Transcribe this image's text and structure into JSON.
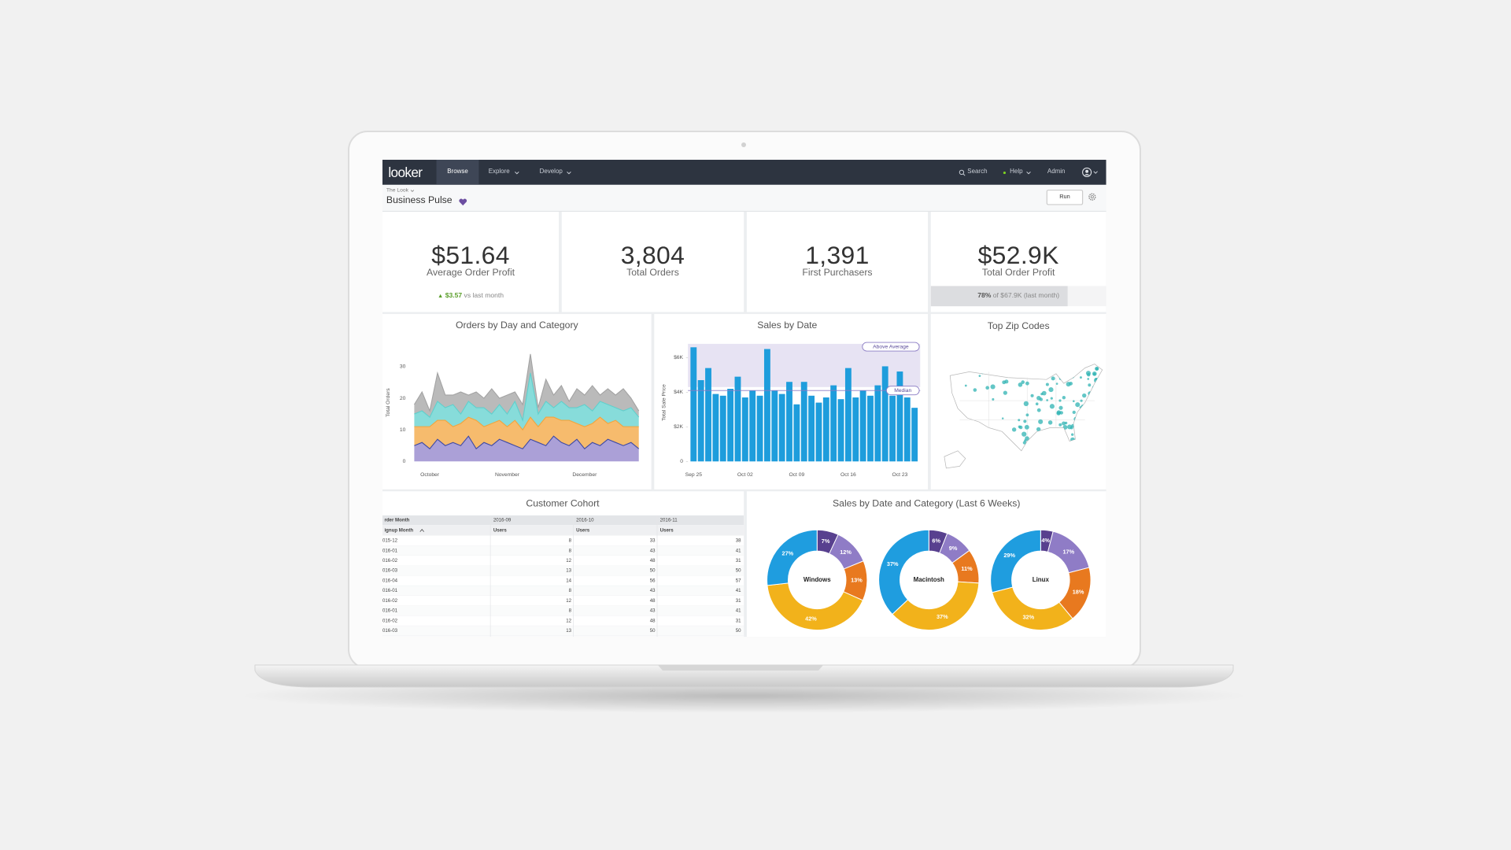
{
  "nav": {
    "logo": "looker",
    "tabs": [
      "Browse",
      "Explore",
      "Develop"
    ],
    "search": "Search",
    "help": "Help",
    "admin": "Admin"
  },
  "header": {
    "breadcrumb": "The Look",
    "title": "Business Pulse",
    "run": "Run"
  },
  "tiles": [
    {
      "value": "$51.64",
      "label": "Average Order Profit",
      "change": "$3.57",
      "change_note": "vs last month"
    },
    {
      "value": "3,804",
      "label": "Total Orders"
    },
    {
      "value": "1,391",
      "label": "First Purchasers"
    },
    {
      "value": "$52.9K",
      "label": "Total Order Profit",
      "progress": {
        "value": 78,
        "label": "78%"
      },
      "progress_note": "of $67.9K (last month)"
    }
  ],
  "map": {
    "title": "Top Zip Codes"
  },
  "table": {
    "title": "Customer Cohort",
    "header": [
      [
        "rder Month",
        "2016-09",
        "2016-10",
        "2016-11"
      ],
      [
        "ignup Month",
        "Users",
        "Users",
        "Users"
      ]
    ],
    "rows": [
      [
        "015-12",
        8,
        33,
        38
      ],
      [
        "016-01",
        8,
        43,
        41
      ],
      [
        "016-02",
        12,
        48,
        31
      ],
      [
        "016-03",
        13,
        50,
        50
      ],
      [
        "016-04",
        14,
        56,
        57
      ],
      [
        "016-01",
        8,
        43,
        41
      ],
      [
        "016-02",
        12,
        48,
        31
      ],
      [
        "016-01",
        8,
        43,
        41
      ],
      [
        "016-02",
        12,
        48,
        31
      ],
      [
        "016-03",
        13,
        50,
        50
      ]
    ]
  },
  "chart_data": [
    {
      "type": "area",
      "stacked": true,
      "title": "Orders by Day and Category",
      "y_label": "Total Orders",
      "categories": [
        null,
        null,
        "October",
        null,
        null,
        null,
        null,
        null,
        null,
        null,
        null,
        null,
        "November",
        null,
        null,
        null,
        null,
        null,
        null,
        null,
        null,
        null,
        "December",
        null,
        null,
        null,
        null,
        null,
        null,
        null
      ],
      "series": [
        {
          "color": "#8f80c9",
          "values": [
            5,
            6,
            4,
            7,
            5,
            6,
            5,
            8,
            4,
            6,
            5,
            7,
            6,
            5,
            4,
            7,
            6,
            5,
            8,
            6,
            5,
            7,
            4,
            6,
            5,
            7,
            6,
            5,
            6,
            4
          ]
        },
        {
          "color": "#f3a43c",
          "values": [
            6,
            5,
            7,
            6,
            8,
            5,
            7,
            6,
            9,
            5,
            7,
            6,
            5,
            8,
            6,
            7,
            5,
            9,
            6,
            7,
            8,
            5,
            7,
            6,
            9,
            5,
            7,
            6,
            5,
            7
          ]
        },
        {
          "color": "#5fd0cd",
          "values": [
            4,
            5,
            3,
            6,
            4,
            7,
            3,
            5,
            4,
            6,
            3,
            5,
            4,
            6,
            3,
            14,
            4,
            5,
            3,
            6,
            4,
            5,
            7,
            4,
            5,
            6,
            4,
            5,
            6,
            3
          ]
        },
        {
          "color": "#a3a3a3",
          "values": [
            3,
            6,
            2,
            9,
            4,
            3,
            7,
            2,
            5,
            3,
            8,
            2,
            6,
            3,
            5,
            6,
            2,
            7,
            4,
            5,
            2,
            6,
            3,
            8,
            2,
            5,
            4,
            7,
            3,
            2
          ]
        }
      ],
      "ylim": [
        0,
        36
      ],
      "yticks": [
        0,
        10,
        20,
        30
      ]
    },
    {
      "type": "bar",
      "title": "Sales by Date",
      "y_label": "Total Sale Price",
      "color": "#1e9ddc",
      "categories": [
        "Sep 25",
        null,
        null,
        null,
        null,
        null,
        null,
        "Oct 02",
        null,
        null,
        null,
        null,
        null,
        null,
        "Oct 09",
        null,
        null,
        null,
        null,
        null,
        null,
        "Oct 16",
        null,
        null,
        null,
        null,
        null,
        null,
        "Oct 23",
        null,
        null
      ],
      "values": [
        6600,
        4700,
        5400,
        3900,
        3800,
        4200,
        4900,
        3700,
        4100,
        3800,
        6500,
        4100,
        3900,
        4600,
        3300,
        4600,
        3800,
        3400,
        3700,
        4400,
        3600,
        5400,
        3700,
        4100,
        3800,
        4400,
        5500,
        3800,
        5200,
        3700,
        3100
      ],
      "ylim": [
        0,
        6800
      ],
      "yticks": [
        0,
        {
          "value": 2000,
          "label": "$2K"
        },
        {
          "value": 4000,
          "label": "$4K"
        },
        {
          "value": 6000,
          "label": "$6K"
        }
      ],
      "bands": [
        {
          "label": "Above Average",
          "from": 4300,
          "to": 6800
        }
      ],
      "reference_lines": [
        {
          "label": "Median",
          "value": 4100
        }
      ]
    },
    {
      "type": "donut",
      "title": "Sales by Date and Category (Last 6 Weeks)",
      "colors": [
        "#58408f",
        "#8f7cc6",
        "#e8791f",
        "#f2b21b",
        "#1f9ddf"
      ],
      "series": [
        {
          "name": "Windows",
          "values": [
            7,
            12,
            13,
            42,
            27
          ],
          "value_labels": [
            "7%",
            "12%",
            "13%",
            "42%",
            "27%"
          ]
        },
        {
          "name": "Macintosh",
          "values": [
            6,
            9,
            11,
            37,
            37
          ],
          "value_labels": [
            "6%",
            "9%",
            "11%",
            "37%",
            "37%"
          ]
        },
        {
          "name": "Linux",
          "values": [
            4,
            17,
            18,
            32,
            29
          ],
          "value_labels": [
            "4%",
            "17%",
            "18%",
            "32%",
            "29%"
          ]
        }
      ]
    }
  ]
}
